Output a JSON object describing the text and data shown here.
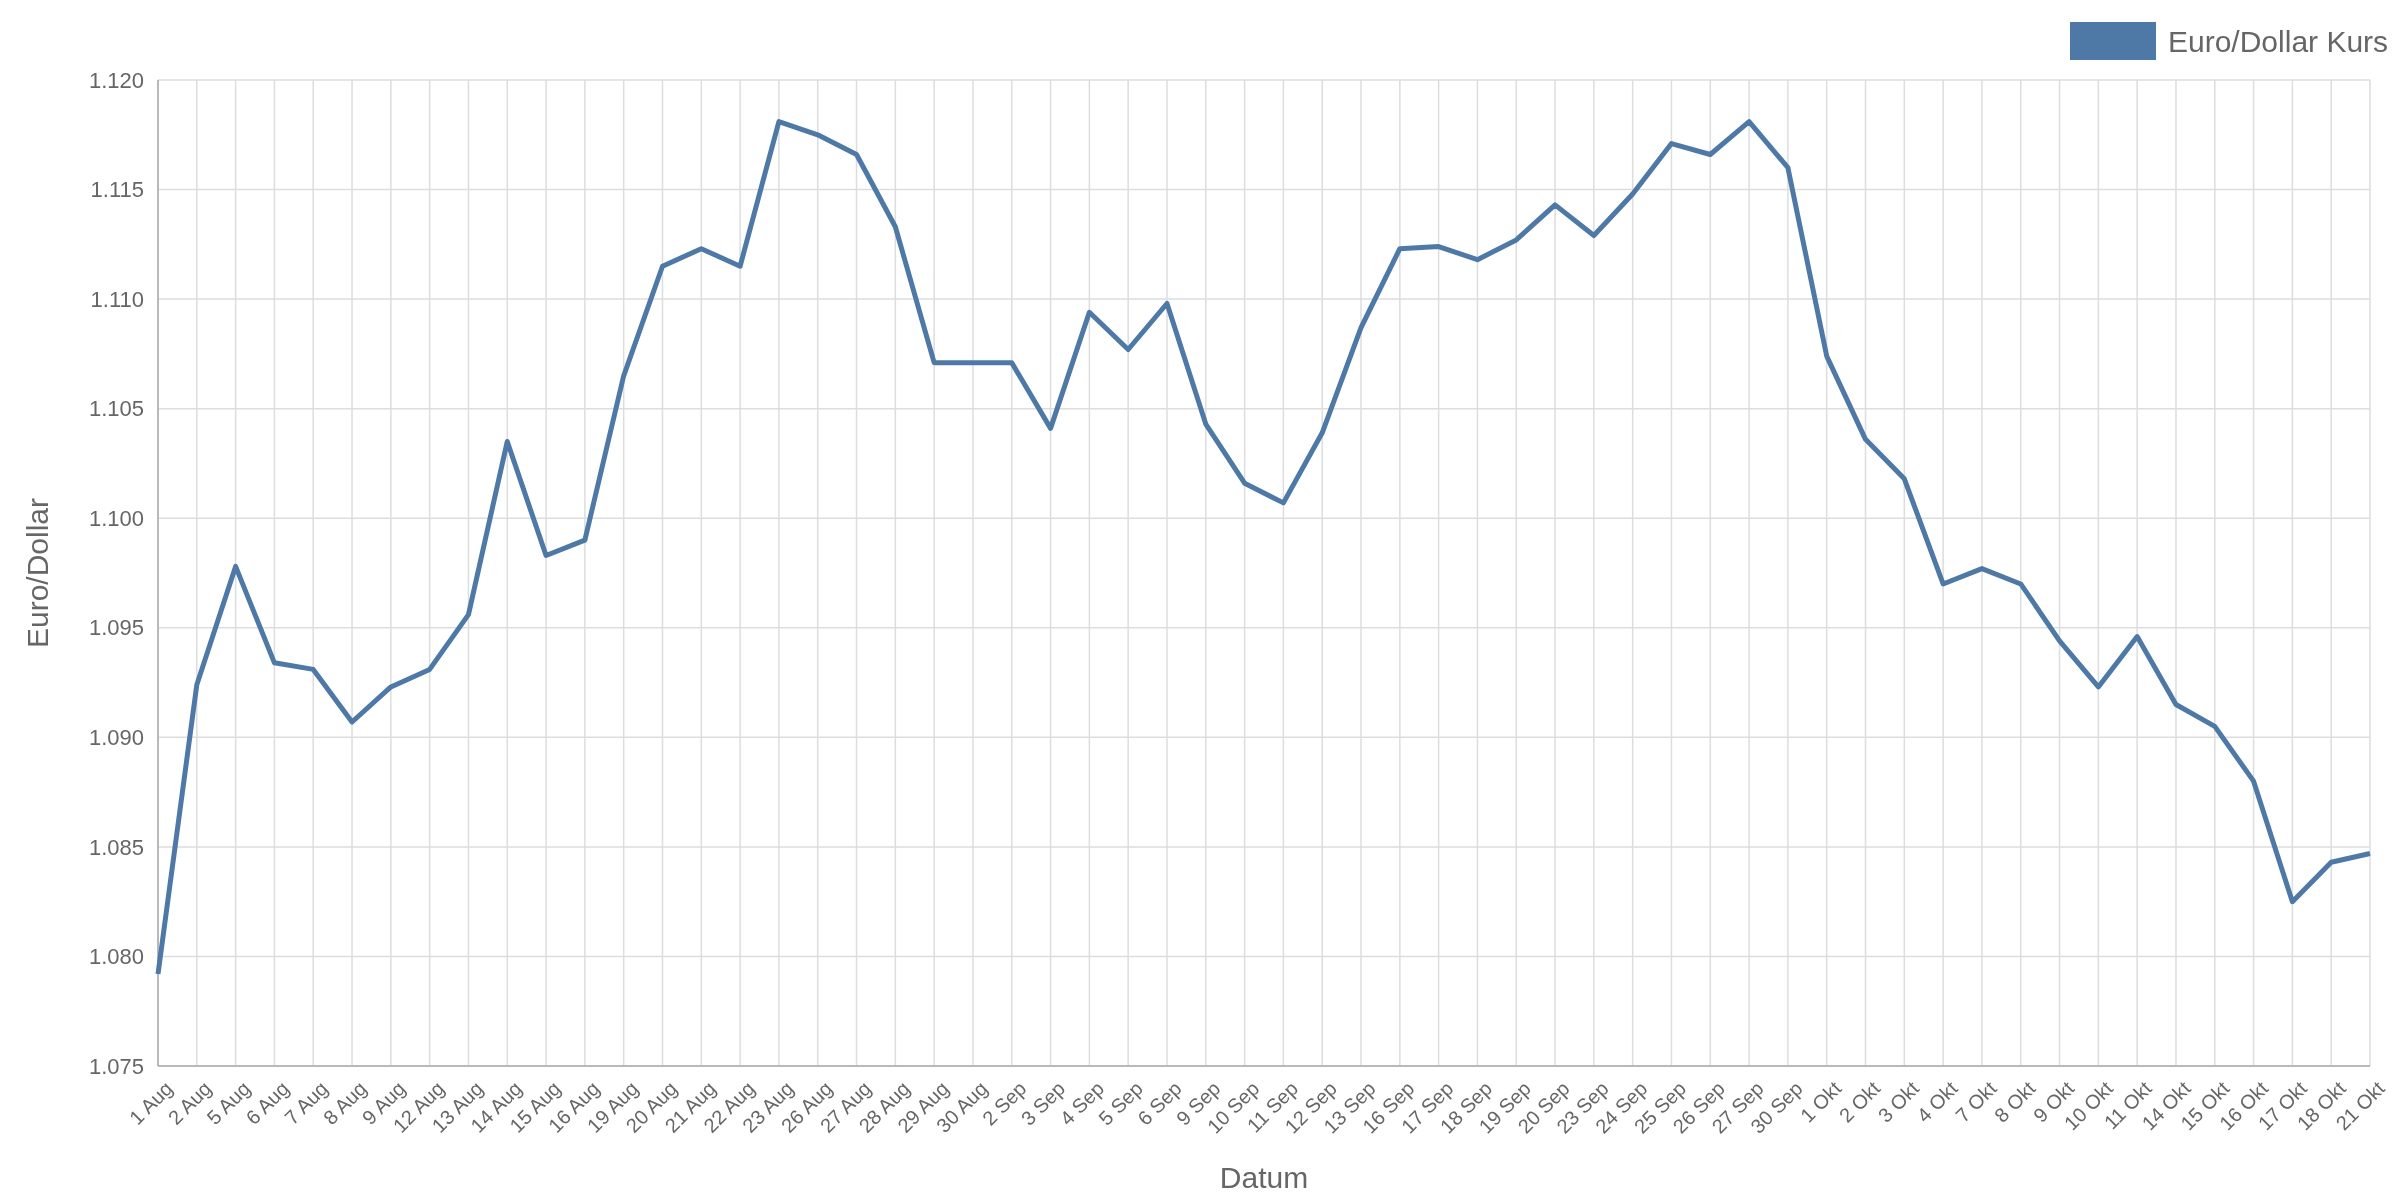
{
  "chart_data": {
    "type": "line",
    "xlabel": "Datum",
    "ylabel": "Euro/Dollar",
    "categories": [
      "1 Aug",
      "2 Aug",
      "5 Aug",
      "6 Aug",
      "7 Aug",
      "8 Aug",
      "9 Aug",
      "12 Aug",
      "13 Aug",
      "14 Aug",
      "15 Aug",
      "16 Aug",
      "19 Aug",
      "20 Aug",
      "21 Aug",
      "22 Aug",
      "23 Aug",
      "26 Aug",
      "27 Aug",
      "28 Aug",
      "29 Aug",
      "30 Aug",
      "2 Sep",
      "3 Sep",
      "4 Sep",
      "5 Sep",
      "6 Sep",
      "9 Sep",
      "10 Sep",
      "11 Sep",
      "12 Sep",
      "13 Sep",
      "16 Sep",
      "17 Sep",
      "18 Sep",
      "19 Sep",
      "20 Sep",
      "23 Sep",
      "24 Sep",
      "25 Sep",
      "26 Sep",
      "27 Sep",
      "30 Sep",
      "1 Okt",
      "2 Okt",
      "3 Okt",
      "4 Okt",
      "7 Okt",
      "8 Okt",
      "9 Okt",
      "10 Okt",
      "11 Okt",
      "14 Okt",
      "15 Okt",
      "16 Okt",
      "17 Okt",
      "18 Okt",
      "21 Okt"
    ],
    "series": [
      {
        "name": "Euro/Dollar Kurs",
        "color": "#4e79a7",
        "values": [
          1.0792,
          1.0924,
          1.0978,
          1.0934,
          1.0931,
          1.0907,
          1.0923,
          1.0931,
          1.0956,
          1.1035,
          1.0983,
          1.099,
          1.1065,
          1.1115,
          1.1123,
          1.1115,
          1.1181,
          1.1175,
          1.1166,
          1.1133,
          1.1071,
          1.1071,
          1.1071,
          1.1041,
          1.1094,
          1.1077,
          1.1098,
          1.1043,
          1.1016,
          1.1007,
          1.1039,
          1.1087,
          1.1123,
          1.1124,
          1.1118,
          1.1127,
          1.1143,
          1.1129,
          1.1148,
          1.1171,
          1.1166,
          1.1181,
          1.116,
          1.1074,
          1.1036,
          1.1018,
          1.097,
          1.0977,
          1.097,
          1.0944,
          1.0923,
          1.0946,
          1.0915,
          1.0905,
          1.088,
          1.0825,
          1.0843,
          1.0847
        ]
      }
    ],
    "ylim": [
      1.075,
      1.12
    ],
    "yticks": [
      {
        "value": 1.075,
        "label": "1.075"
      },
      {
        "value": 1.08,
        "label": "1.080"
      },
      {
        "value": 1.085,
        "label": "1.085"
      },
      {
        "value": 1.09,
        "label": "1.090"
      },
      {
        "value": 1.095,
        "label": "1.095"
      },
      {
        "value": 1.1,
        "label": "1.100"
      },
      {
        "value": 1.105,
        "label": "1.105"
      },
      {
        "value": 1.11,
        "label": "1.110"
      },
      {
        "value": 1.115,
        "label": "1.115"
      },
      {
        "value": 1.12,
        "label": "1.120"
      }
    ],
    "grid": true,
    "legend": "top right",
    "marker": "none",
    "line_style": "solid"
  }
}
